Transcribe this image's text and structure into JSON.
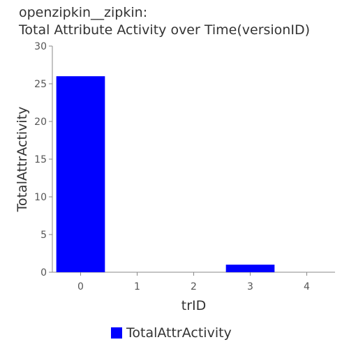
{
  "title_lines": [
    "openzipkin__zipkin:",
    "Total Attribute Activity over Time(versionID)"
  ],
  "chart_data": {
    "type": "bar",
    "title": "openzipkin__zipkin: Total Attribute Activity over Time(versionID)",
    "xlabel": "trID",
    "ylabel": "TotalAttrActivity",
    "categories": [
      "0",
      "1",
      "2",
      "3",
      "4"
    ],
    "series": [
      {
        "name": "TotalAttrActivity",
        "values": [
          26,
          0,
          0,
          1,
          0
        ],
        "color": "#0000ff"
      }
    ],
    "ylim": [
      0,
      30
    ],
    "yticks": [
      0,
      5,
      10,
      15,
      20,
      25,
      30
    ],
    "grid": false,
    "legend_position": "bottom"
  }
}
